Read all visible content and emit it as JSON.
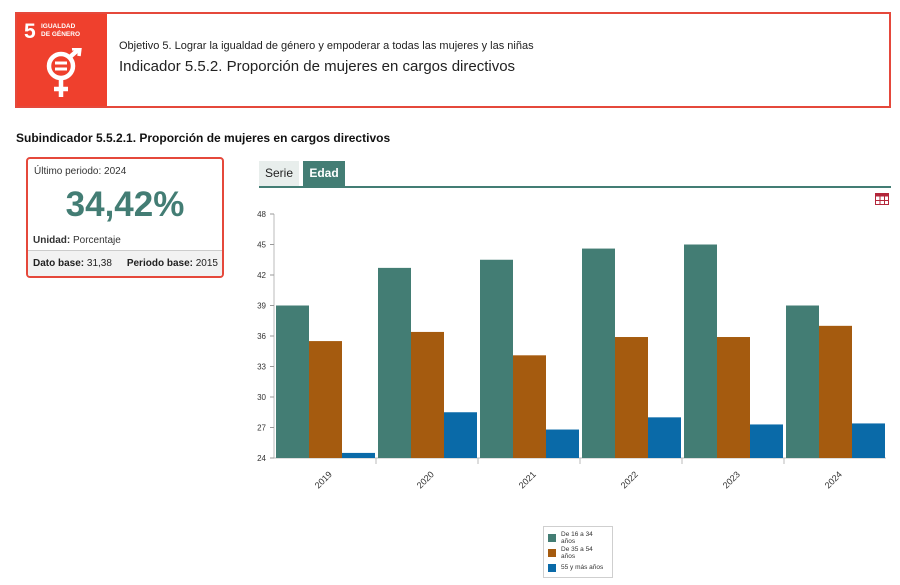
{
  "header": {
    "sdg_number": "5",
    "sdg_name_line1": "IGUALDAD",
    "sdg_name_line2": "DE GÉNERO",
    "objective": "Objetivo 5. Lograr la igualdad de género y empoderar a todas las mujeres y las niñas",
    "indicator": "Indicador 5.5.2. Proporción de mujeres en cargos directivos"
  },
  "subindicator_title": "Subindicador 5.5.2.1. Proporción de mujeres en cargos directivos",
  "card": {
    "period_label": "Último periodo:",
    "period_value": "2024",
    "value": "34,42%",
    "unit_label": "Unidad:",
    "unit_value": "Porcentaje",
    "base_label": "Dato base:",
    "base_value": "31,38",
    "base_period_label": "Periodo base:",
    "base_period_value": "2015"
  },
  "tabs": [
    {
      "label": "Serie",
      "active": false
    },
    {
      "label": "Edad",
      "active": true
    }
  ],
  "icons": {
    "table": "table-icon",
    "sdg_symbol": "gender-equality-icon"
  },
  "colors": {
    "accent_red": "#e5483b",
    "teal": "#437d74",
    "orange": "#a55b0f",
    "blue": "#0a6aa8"
  },
  "chart_data": {
    "type": "bar",
    "categories": [
      "2019",
      "2020",
      "2021",
      "2022",
      "2023",
      "2024"
    ],
    "series": [
      {
        "name": "De 16 a 34 años",
        "color": "#437d74",
        "values": [
          39.0,
          42.7,
          43.5,
          44.6,
          45.0,
          39.0
        ]
      },
      {
        "name": "De 35 a 54 años",
        "color": "#a55b0f",
        "values": [
          35.5,
          36.4,
          34.1,
          35.9,
          35.9,
          37.0
        ]
      },
      {
        "name": "55 y más años",
        "color": "#0a6aa8",
        "values": [
          24.5,
          28.5,
          26.8,
          28.0,
          27.3,
          27.4
        ]
      }
    ],
    "ylim": [
      24,
      48
    ],
    "yticks": [
      24,
      27,
      30,
      33,
      36,
      39,
      42,
      45,
      48
    ],
    "grid": false,
    "legend_position": "bottom",
    "title": "",
    "xlabel": "",
    "ylabel": ""
  }
}
